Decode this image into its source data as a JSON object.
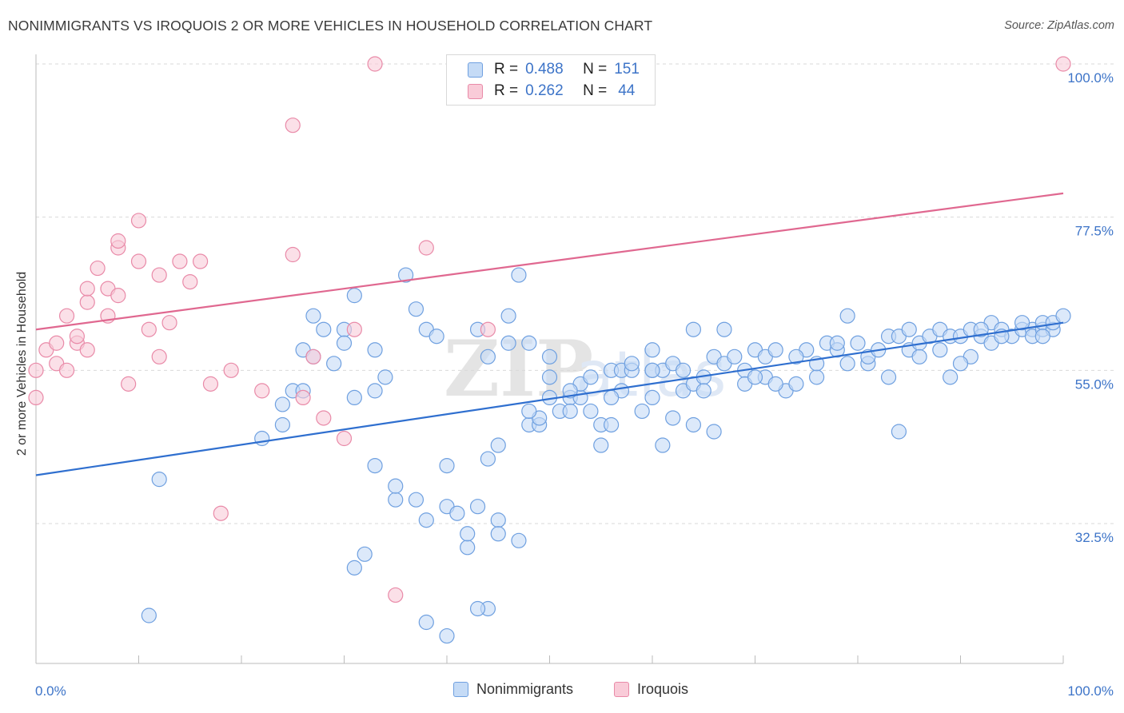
{
  "title": "NONIMMIGRANTS VS IROQUOIS 2 OR MORE VEHICLES IN HOUSEHOLD CORRELATION CHART",
  "source": "Source: ZipAtlas.com",
  "watermark": "ZIPatlas",
  "legend_stats": [
    {
      "r_label": "R =",
      "r_value": "0.488",
      "n_label": "N =",
      "n_value": "151",
      "color": "#a9c8f2"
    },
    {
      "r_label": "R =",
      "r_value": "0.262",
      "n_label": "N =",
      "n_value": "44",
      "color": "#f7b6c8"
    }
  ],
  "chart_data": {
    "type": "scatter",
    "title": "NONIMMIGRANTS VS IROQUOIS 2 OR MORE VEHICLES IN HOUSEHOLD CORRELATION CHART",
    "xlabel": "",
    "ylabel": "2 or more Vehicles in Household",
    "xlim": [
      0,
      100
    ],
    "ylim": [
      10,
      103
    ],
    "x_tick_labels": [
      "0.0%",
      "100.0%"
    ],
    "y_ticks": [
      32.5,
      55.0,
      77.5,
      100.0
    ],
    "y_tick_labels": [
      "32.5%",
      "55.0%",
      "77.5%",
      "100.0%"
    ],
    "grid": "horizontal dashed",
    "legend_position": "bottom",
    "series": [
      {
        "name": "Nonimmigrants",
        "color": "#6fa0e0",
        "fill": "#c5dbf6",
        "trend": {
          "x": [
            0,
            100
          ],
          "y": [
            39.6,
            62.0
          ],
          "color": "#2f6fcf"
        },
        "points": [
          [
            12,
            39
          ],
          [
            11,
            19
          ],
          [
            22,
            45
          ],
          [
            24,
            50
          ],
          [
            24,
            47
          ],
          [
            25,
            52
          ],
          [
            26,
            58
          ],
          [
            27,
            57
          ],
          [
            27,
            63
          ],
          [
            28,
            61
          ],
          [
            26,
            52
          ],
          [
            30,
            61
          ],
          [
            29,
            56
          ],
          [
            30,
            59
          ],
          [
            31,
            66
          ],
          [
            31,
            51
          ],
          [
            33,
            52
          ],
          [
            33,
            41
          ],
          [
            34,
            54
          ],
          [
            35,
            36
          ],
          [
            35,
            38
          ],
          [
            36,
            69
          ],
          [
            37,
            64
          ],
          [
            37,
            36
          ],
          [
            38,
            61
          ],
          [
            38,
            33
          ],
          [
            39,
            60
          ],
          [
            40,
            41
          ],
          [
            40,
            35
          ],
          [
            41,
            34
          ],
          [
            42,
            29
          ],
          [
            42,
            31
          ],
          [
            43,
            35
          ],
          [
            43,
            61
          ],
          [
            44,
            57
          ],
          [
            44,
            42
          ],
          [
            45,
            33
          ],
          [
            45,
            31
          ],
          [
            46,
            59
          ],
          [
            46,
            63
          ],
          [
            47,
            30
          ],
          [
            47,
            69
          ],
          [
            48,
            59
          ],
          [
            48,
            47
          ],
          [
            49,
            47
          ],
          [
            49,
            48
          ],
          [
            50,
            54
          ],
          [
            50,
            57
          ],
          [
            50,
            51
          ],
          [
            51,
            49
          ],
          [
            52,
            51
          ],
          [
            52,
            49
          ],
          [
            53,
            51
          ],
          [
            53,
            53
          ],
          [
            54,
            54
          ],
          [
            54,
            49
          ],
          [
            55,
            47
          ],
          [
            55,
            44
          ],
          [
            56,
            55
          ],
          [
            56,
            47
          ],
          [
            57,
            52
          ],
          [
            57,
            55
          ],
          [
            58,
            55
          ],
          [
            59,
            49
          ],
          [
            60,
            51
          ],
          [
            60,
            55
          ],
          [
            60,
            58
          ],
          [
            61,
            55
          ],
          [
            61,
            44
          ],
          [
            62,
            56
          ],
          [
            62,
            48
          ],
          [
            63,
            55
          ],
          [
            63,
            52
          ],
          [
            64,
            53
          ],
          [
            64,
            47
          ],
          [
            65,
            54
          ],
          [
            65,
            52
          ],
          [
            66,
            46
          ],
          [
            66,
            57
          ],
          [
            67,
            56
          ],
          [
            67,
            61
          ],
          [
            68,
            57
          ],
          [
            69,
            55
          ],
          [
            69,
            53
          ],
          [
            70,
            58
          ],
          [
            71,
            57
          ],
          [
            71,
            54
          ],
          [
            72,
            58
          ],
          [
            73,
            52
          ],
          [
            74,
            53
          ],
          [
            75,
            58
          ],
          [
            76,
            54
          ],
          [
            76,
            56
          ],
          [
            77,
            59
          ],
          [
            78,
            58
          ],
          [
            78,
            59
          ],
          [
            79,
            63
          ],
          [
            79,
            56
          ],
          [
            80,
            59
          ],
          [
            81,
            56
          ],
          [
            81,
            57
          ],
          [
            82,
            58
          ],
          [
            83,
            54
          ],
          [
            83,
            60
          ],
          [
            84,
            60
          ],
          [
            85,
            58
          ],
          [
            85,
            61
          ],
          [
            86,
            59
          ],
          [
            86,
            57
          ],
          [
            87,
            60
          ],
          [
            88,
            58
          ],
          [
            88,
            61
          ],
          [
            89,
            60
          ],
          [
            89,
            54
          ],
          [
            90,
            60
          ],
          [
            91,
            61
          ],
          [
            91,
            57
          ],
          [
            92,
            60
          ],
          [
            93,
            59
          ],
          [
            93,
            62
          ],
          [
            94,
            61
          ],
          [
            95,
            60
          ],
          [
            96,
            61
          ],
          [
            97,
            61
          ],
          [
            97,
            60
          ],
          [
            98,
            61
          ],
          [
            98,
            62
          ],
          [
            99,
            61
          ],
          [
            99,
            62
          ],
          [
            100,
            63
          ],
          [
            64,
            61
          ],
          [
            70,
            54
          ],
          [
            72,
            53
          ],
          [
            74,
            57
          ],
          [
            84,
            46
          ],
          [
            90,
            56
          ],
          [
            92,
            61
          ],
          [
            94,
            60
          ],
          [
            96,
            62
          ],
          [
            98,
            60
          ],
          [
            33,
            58
          ],
          [
            60,
            55
          ],
          [
            56,
            51
          ],
          [
            58,
            56
          ],
          [
            52,
            52
          ],
          [
            48,
            49
          ],
          [
            45,
            44
          ],
          [
            44,
            20
          ],
          [
            43,
            20
          ],
          [
            40,
            16
          ],
          [
            38,
            18
          ],
          [
            32,
            28
          ],
          [
            31,
            26
          ]
        ]
      },
      {
        "name": "Iroquois",
        "color": "#e98aa8",
        "fill": "#f9cbd8",
        "trend": {
          "x": [
            0,
            100
          ],
          "y": [
            61.0,
            81.0
          ],
          "color": "#e06890"
        },
        "points": [
          [
            0,
            51
          ],
          [
            0,
            55
          ],
          [
            1,
            58
          ],
          [
            2,
            59
          ],
          [
            2,
            56
          ],
          [
            3,
            63
          ],
          [
            3,
            55
          ],
          [
            4,
            59
          ],
          [
            4,
            60
          ],
          [
            5,
            58
          ],
          [
            5,
            65
          ],
          [
            5,
            67
          ],
          [
            6,
            70
          ],
          [
            7,
            63
          ],
          [
            7,
            67
          ],
          [
            8,
            66
          ],
          [
            8,
            73
          ],
          [
            8,
            74
          ],
          [
            9,
            53
          ],
          [
            10,
            71
          ],
          [
            10,
            77
          ],
          [
            11,
            61
          ],
          [
            12,
            57
          ],
          [
            12,
            69
          ],
          [
            13,
            62
          ],
          [
            14,
            71
          ],
          [
            15,
            68
          ],
          [
            16,
            71
          ],
          [
            17,
            53
          ],
          [
            18,
            34
          ],
          [
            19,
            55
          ],
          [
            22,
            52
          ],
          [
            25,
            72
          ],
          [
            25,
            91
          ],
          [
            26,
            51
          ],
          [
            27,
            57
          ],
          [
            28,
            48
          ],
          [
            30,
            45
          ],
          [
            31,
            61
          ],
          [
            33,
            100
          ],
          [
            35,
            22
          ],
          [
            38,
            73
          ],
          [
            44,
            61
          ],
          [
            100,
            100
          ]
        ]
      }
    ]
  },
  "bottom_legend": [
    "Nonimmigrants",
    "Iroquois"
  ]
}
